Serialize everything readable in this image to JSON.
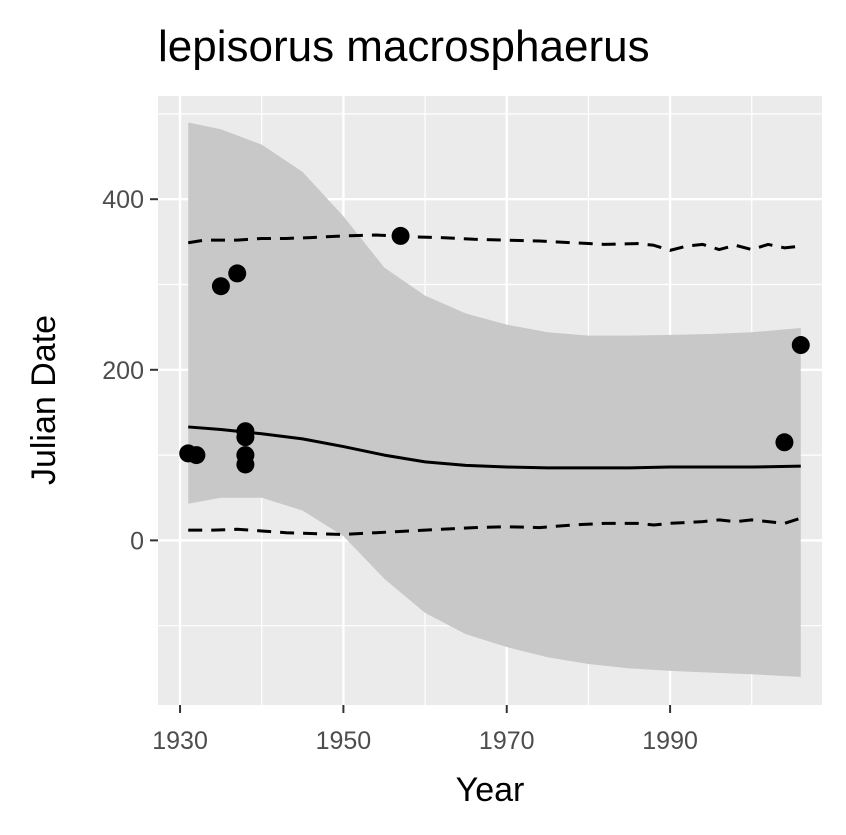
{
  "chart_data": {
    "type": "scatter",
    "title": "lepisorus macrosphaerus",
    "xlabel": "Year",
    "ylabel": "Julian Date",
    "xlim": [
      1927.3,
      2008.6
    ],
    "ylim": [
      -193,
      521
    ],
    "x_ticks": [
      1930,
      1950,
      1970,
      1990
    ],
    "y_ticks": [
      0,
      200,
      400
    ],
    "grid": true,
    "legend": "none",
    "colors": {
      "panel_background": "#ebebeb",
      "grid": "#ffffff",
      "ribbon": "#c8c8c8",
      "points": "#000000",
      "lines": "#000000"
    },
    "series": [
      {
        "type": "points",
        "x": [
          1931,
          1932,
          1935,
          1937,
          1938,
          1938,
          1938,
          1938,
          1957,
          2004,
          2006
        ],
        "y": [
          102,
          100,
          298,
          313,
          128,
          121,
          100,
          89,
          357,
          115,
          229
        ]
      },
      {
        "type": "ribbon",
        "x": [
          1931,
          1935,
          1940,
          1945,
          1950,
          1955,
          1960,
          1965,
          1970,
          1975,
          1980,
          1985,
          1990,
          1995,
          2000,
          2006
        ],
        "upper": [
          490,
          482,
          464,
          432,
          380,
          320,
          287,
          266,
          253,
          244,
          240,
          240,
          241,
          242,
          244,
          249
        ],
        "lower": [
          43,
          50,
          50,
          35,
          5,
          -45,
          -85,
          -110,
          -125,
          -137,
          -145,
          -150,
          -153,
          -155,
          -157,
          -160
        ]
      },
      {
        "type": "line",
        "style": "solid",
        "x": [
          1931,
          1935,
          1940,
          1945,
          1950,
          1955,
          1960,
          1965,
          1970,
          1975,
          1980,
          1985,
          1990,
          1995,
          2000,
          2006
        ],
        "y": [
          133,
          130,
          125,
          119,
          110,
          100,
          92,
          88,
          86,
          85,
          85,
          85,
          86,
          86,
          86,
          87
        ]
      },
      {
        "type": "line",
        "style": "dashed",
        "x": [
          1931,
          1933,
          1935,
          1937,
          1940,
          1943,
          1946,
          1950,
          1954,
          1958,
          1962,
          1966,
          1970,
          1974,
          1978,
          1982,
          1986,
          1988,
          1990,
          1992,
          1994,
          1996,
          1998,
          2000,
          2002,
          2004,
          2006
        ],
        "y": [
          349,
          352,
          352,
          352,
          354,
          354,
          355,
          357,
          358,
          356,
          355,
          353,
          352,
          351,
          349,
          347,
          348,
          346,
          340,
          345,
          347,
          341,
          346,
          341,
          347,
          343,
          345
        ]
      },
      {
        "type": "line",
        "style": "dashed",
        "x": [
          1931,
          1934,
          1937,
          1940,
          1943,
          1946,
          1950,
          1954,
          1958,
          1962,
          1966,
          1970,
          1974,
          1978,
          1982,
          1986,
          1988,
          1990,
          1992,
          1994,
          1996,
          1998,
          2000,
          2002,
          2004,
          2006
        ],
        "y": [
          12,
          12,
          13,
          11,
          9,
          8,
          7,
          9,
          11,
          13,
          15,
          16,
          15,
          18,
          20,
          20,
          18,
          20,
          21,
          22,
          24,
          22,
          24,
          22,
          20,
          26
        ]
      }
    ]
  }
}
